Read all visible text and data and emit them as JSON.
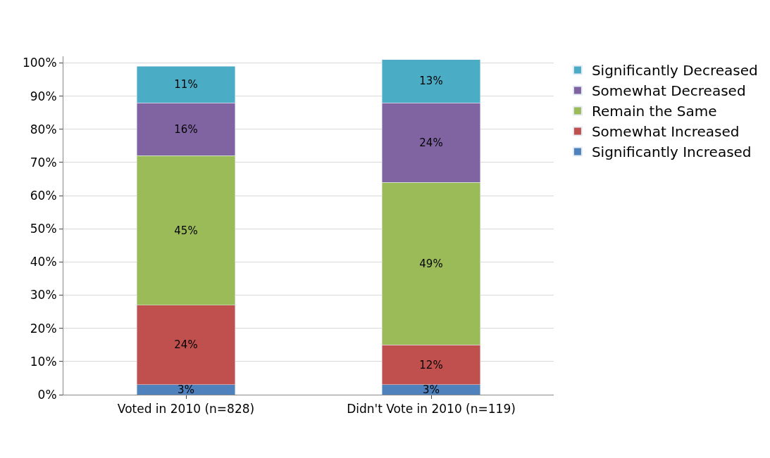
{
  "chart_data": {
    "type": "bar",
    "stacked": true,
    "categories": [
      "Voted in 2010 (n=828)",
      "Didn't Vote in 2010 (n=119)"
    ],
    "series": [
      {
        "name": "Significantly Increased",
        "color": "#4f81bd",
        "values": [
          3,
          3
        ],
        "value_labels": [
          "3%",
          "3%"
        ]
      },
      {
        "name": "Somewhat Increased",
        "color": "#c0504d",
        "values": [
          24,
          12
        ],
        "value_labels": [
          "24%",
          "12%"
        ]
      },
      {
        "name": "Remain the Same",
        "color": "#9bbb59",
        "values": [
          45,
          49
        ],
        "value_labels": [
          "45%",
          "49%"
        ]
      },
      {
        "name": "Somewhat Decreased",
        "color": "#8064a2",
        "values": [
          16,
          24
        ],
        "value_labels": [
          "16%",
          "24%"
        ]
      },
      {
        "name": "Significantly Decreased",
        "color": "#4bacc6",
        "values": [
          11,
          13
        ],
        "value_labels": [
          "11%",
          "13%"
        ]
      }
    ],
    "ylim": [
      0,
      102
    ],
    "yticks": [
      {
        "value": 0,
        "label": "0%"
      },
      {
        "value": 10,
        "label": "10%"
      },
      {
        "value": 20,
        "label": "20%"
      },
      {
        "value": 30,
        "label": "30%"
      },
      {
        "value": 40,
        "label": "40%"
      },
      {
        "value": 50,
        "label": "50%"
      },
      {
        "value": 60,
        "label": "60%"
      },
      {
        "value": 70,
        "label": "70%"
      },
      {
        "value": 80,
        "label": "80%"
      },
      {
        "value": 90,
        "label": "90%"
      },
      {
        "value": 100,
        "label": "100%"
      }
    ],
    "grid": "y",
    "legend": "right"
  }
}
